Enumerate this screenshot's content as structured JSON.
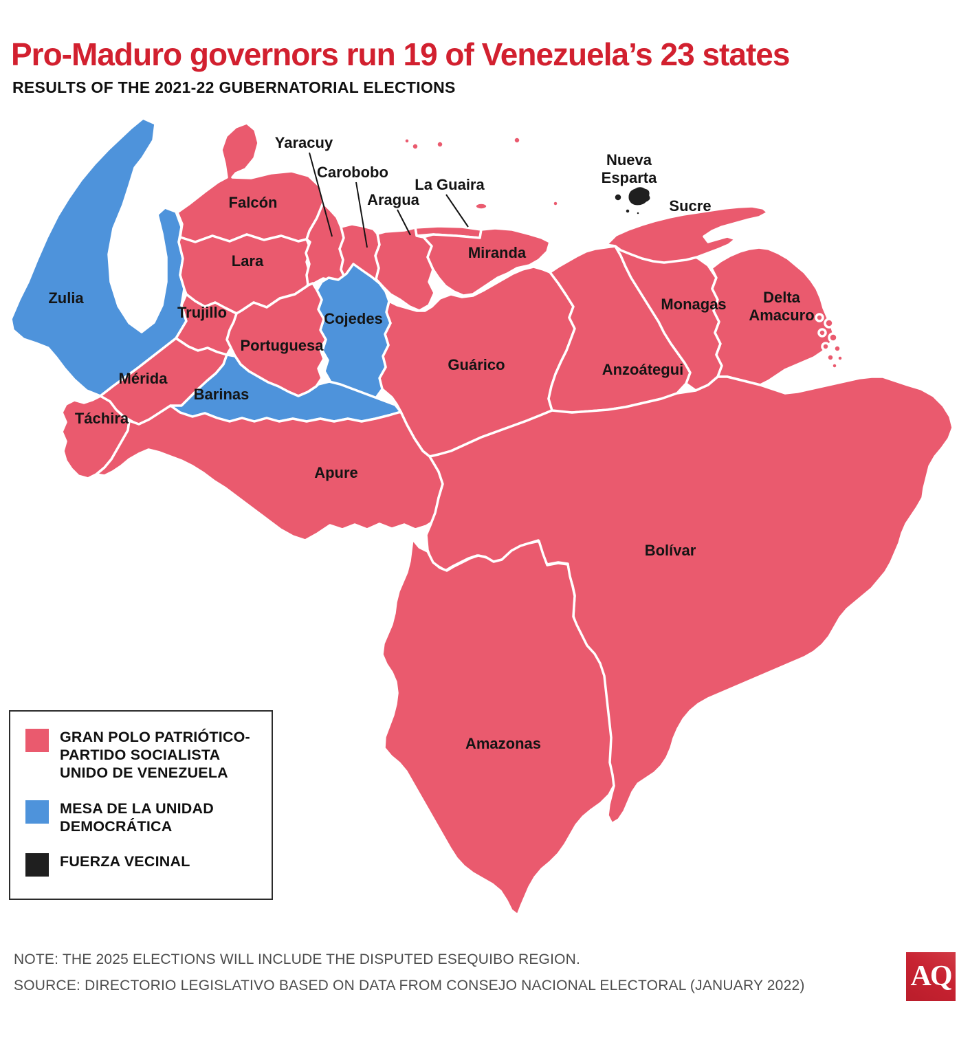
{
  "header": {
    "title": "Pro-Maduro governors run 19 of Venezuela’s 23 states",
    "subtitle": "RESULTS OF THE 2021-22 GUBERNATORIAL ELECTIONS"
  },
  "parties": {
    "gpp": {
      "name": "Gran Polo Patriótico-Partido Socialista Unido de Venezuela",
      "color": "#ea5a6e"
    },
    "mud": {
      "name": "Mesa de la Unidad Democrática",
      "color": "#4e93db"
    },
    "fv": {
      "name": "Fuerza Vecinal",
      "color": "#1f1f1f"
    }
  },
  "map": {
    "states": [
      {
        "id": "zulia",
        "name": "Zulia",
        "party": "mud",
        "label": [
          96,
          441
        ]
      },
      {
        "id": "falcon",
        "name": "Falcón",
        "party": "gpp",
        "label": [
          368,
          302
        ]
      },
      {
        "id": "lara",
        "name": "Lara",
        "party": "gpp",
        "label": [
          360,
          387
        ]
      },
      {
        "id": "yaracuy",
        "name": "Yaracuy",
        "party": "gpp",
        "label": [
          442,
          215
        ],
        "leader": [
          450,
          222,
          483,
          344
        ]
      },
      {
        "id": "carobobo",
        "name": "Carobobo",
        "party": "gpp",
        "label": [
          513,
          258
        ],
        "leader": [
          518,
          265,
          534,
          360
        ]
      },
      {
        "id": "aragua",
        "name": "Aragua",
        "party": "gpp",
        "label": [
          572,
          298
        ],
        "leader": [
          578,
          305,
          597,
          342
        ]
      },
      {
        "id": "la_guaira",
        "name": "La Guaira",
        "party": "gpp",
        "label": [
          654,
          276
        ],
        "leader": [
          649,
          283,
          681,
          330
        ]
      },
      {
        "id": "miranda",
        "name": "Miranda",
        "party": "gpp",
        "label": [
          723,
          375
        ]
      },
      {
        "id": "nueva_esparta",
        "name": "Nueva Esparta",
        "party": "fv",
        "label": [
          915,
          240
        ],
        "lines": [
          "Nueva",
          "Esparta"
        ]
      },
      {
        "id": "sucre",
        "name": "Sucre",
        "party": "gpp",
        "label": [
          1004,
          307
        ]
      },
      {
        "id": "monagas",
        "name": "Monagas",
        "party": "gpp",
        "label": [
          1009,
          450
        ]
      },
      {
        "id": "delta_amacuro",
        "name": "Delta Amacuro",
        "party": "gpp",
        "label": [
          1137,
          440
        ],
        "lines": [
          "Delta",
          "Amacuro"
        ]
      },
      {
        "id": "anzoategui",
        "name": "Anzoátegui",
        "party": "gpp",
        "label": [
          935,
          545
        ]
      },
      {
        "id": "guarico",
        "name": "Guárico",
        "party": "gpp",
        "label": [
          693,
          538
        ]
      },
      {
        "id": "cojedes",
        "name": "Cojedes",
        "party": "mud",
        "label": [
          514,
          471
        ]
      },
      {
        "id": "portuguesa",
        "name": "Portuguesa",
        "party": "gpp",
        "label": [
          410,
          510
        ]
      },
      {
        "id": "trujillo",
        "name": "Trujillo",
        "party": "gpp",
        "label": [
          294,
          462
        ]
      },
      {
        "id": "merida",
        "name": "Mérida",
        "party": "gpp",
        "label": [
          208,
          558
        ]
      },
      {
        "id": "tachira",
        "name": "Táchira",
        "party": "gpp",
        "label": [
          148,
          616
        ]
      },
      {
        "id": "barinas",
        "name": "Barinas",
        "party": "mud",
        "label": [
          322,
          581
        ]
      },
      {
        "id": "apure",
        "name": "Apure",
        "party": "gpp",
        "label": [
          489,
          695
        ]
      },
      {
        "id": "bolivar",
        "name": "Bolívar",
        "party": "gpp",
        "label": [
          975,
          808
        ]
      },
      {
        "id": "amazonas",
        "name": "Amazonas",
        "party": "gpp",
        "label": [
          732,
          1089
        ]
      }
    ]
  },
  "legend": {
    "items": [
      {
        "id": "gpp",
        "label": "GRAN POLO PATRIÓTICO-PARTIDO SOCIALISTA UNIDO DE VENEZUELA"
      },
      {
        "id": "mud",
        "label": "MESA DE LA UNIDAD DEMOCRÁTICA"
      },
      {
        "id": "fv",
        "label": "FUERZA VECINAL"
      }
    ]
  },
  "notes": {
    "note": "NOTE: THE 2025 ELECTIONS WILL INCLUDE THE DISPUTED ESEQUIBO REGION.",
    "source": "SOURCE: DIRECTORIO LEGISLATIVO BASED ON DATA FROM CONSEJO NACIONAL ELECTORAL (JANUARY 2022)"
  },
  "logo": {
    "text": "AQ"
  }
}
